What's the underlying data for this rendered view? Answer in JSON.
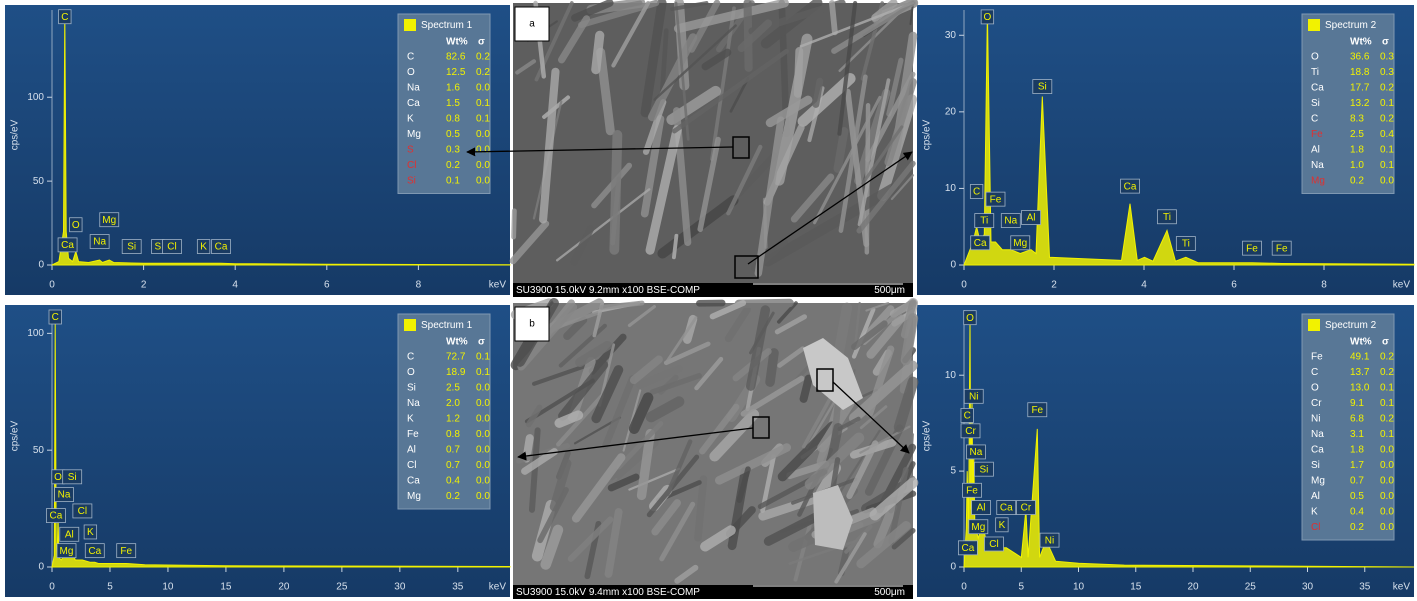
{
  "chart_data": [
    {
      "type": "line",
      "x_label": "keV",
      "y_label": "cps/eV",
      "color": "#f2f200",
      "xlim": [
        0,
        10
      ],
      "xticks": [
        0,
        2,
        4,
        6,
        8
      ],
      "ylim": [
        0,
        152
      ],
      "yticks": [
        0,
        50,
        100
      ],
      "x": [
        0,
        0.15,
        0.25,
        0.28,
        0.31,
        0.36,
        0.45,
        0.52,
        0.58,
        0.8,
        1.04,
        1.1,
        1.25,
        1.35,
        1.74,
        2.0,
        2.31,
        2.62,
        3.31,
        3.69,
        4.0,
        6,
        8,
        10
      ],
      "values": [
        0,
        2,
        20,
        150,
        20,
        4,
        2,
        8,
        2,
        1.5,
        3,
        1.5,
        3,
        1.5,
        1.2,
        1,
        1,
        1,
        1,
        1,
        0.8,
        0.5,
        0.3,
        0.2
      ],
      "annotations": [
        {
          "text": "C",
          "x": 0.28,
          "y": 148
        },
        {
          "text": "O",
          "x": 0.52,
          "y": 24
        },
        {
          "text": "Mg",
          "x": 1.25,
          "y": 27
        },
        {
          "text": "Na",
          "x": 1.04,
          "y": 14
        },
        {
          "text": "Ca",
          "x": 0.34,
          "y": 12
        },
        {
          "text": "Si",
          "x": 1.74,
          "y": 11
        },
        {
          "text": "S",
          "x": 2.31,
          "y": 11
        },
        {
          "text": "Cl",
          "x": 2.62,
          "y": 11
        },
        {
          "text": "K",
          "x": 3.31,
          "y": 11
        },
        {
          "text": "Ca",
          "x": 3.69,
          "y": 11
        }
      ],
      "legend_title": "Spectrum 1",
      "table_header": [
        "Wt%",
        "σ"
      ],
      "table": [
        {
          "element": "C",
          "wt": "82.6",
          "sigma": "0.2"
        },
        {
          "element": "O",
          "wt": "12.5",
          "sigma": "0.2"
        },
        {
          "element": "Na",
          "wt": "1.6",
          "sigma": "0.0"
        },
        {
          "element": "Ca",
          "wt": "1.5",
          "sigma": "0.1"
        },
        {
          "element": "K",
          "wt": "0.8",
          "sigma": "0.1"
        },
        {
          "element": "Mg",
          "wt": "0.5",
          "sigma": "0.0"
        },
        {
          "element": "S",
          "wt": "0.3",
          "sigma": "0.0",
          "color": "#e03030"
        },
        {
          "element": "Cl",
          "wt": "0.2",
          "sigma": "0.0",
          "color": "#e03030"
        },
        {
          "element": "Si",
          "wt": "0.1",
          "sigma": "0.0",
          "color": "#e03030"
        }
      ]
    },
    {
      "type": "line",
      "x_label": "keV",
      "y_label": "cps/eV",
      "color": "#f2f200",
      "xlim": [
        0,
        10
      ],
      "xticks": [
        0,
        2,
        4,
        6,
        8
      ],
      "ylim": [
        0,
        33.3
      ],
      "yticks": [
        0,
        10,
        20,
        30
      ],
      "x": [
        0,
        0.2,
        0.28,
        0.36,
        0.45,
        0.52,
        0.6,
        0.7,
        0.85,
        1.04,
        1.25,
        1.49,
        1.6,
        1.74,
        1.9,
        3.5,
        3.69,
        3.85,
        4.01,
        4.2,
        4.51,
        4.7,
        4.93,
        5.2,
        6.4,
        7.06,
        10
      ],
      "values": [
        0,
        3,
        5,
        3,
        4,
        33,
        3,
        3,
        2,
        2,
        1.5,
        2,
        1.5,
        22,
        1,
        0.6,
        8,
        0.6,
        1,
        0.5,
        4.5,
        0.5,
        1,
        0.3,
        0.3,
        0.2,
        0.1
      ],
      "annotations": [
        {
          "text": "O",
          "x": 0.52,
          "y": 32.4
        },
        {
          "text": "Si",
          "x": 1.74,
          "y": 23.3
        },
        {
          "text": "C",
          "x": 0.28,
          "y": 9.6
        },
        {
          "text": "Ti",
          "x": 0.45,
          "y": 5.8
        },
        {
          "text": "Fe",
          "x": 0.7,
          "y": 8.6
        },
        {
          "text": "Na",
          "x": 1.04,
          "y": 5.8
        },
        {
          "text": "Al",
          "x": 1.49,
          "y": 6.2
        },
        {
          "text": "Ca",
          "x": 0.36,
          "y": 2.9
        },
        {
          "text": "Mg",
          "x": 1.25,
          "y": 2.9
        },
        {
          "text": "Ca",
          "x": 3.69,
          "y": 10.3
        },
        {
          "text": "Ti",
          "x": 4.51,
          "y": 6.3
        },
        {
          "text": "Ti",
          "x": 4.93,
          "y": 2.8
        },
        {
          "text": "Fe",
          "x": 6.4,
          "y": 2.2
        },
        {
          "text": "Fe",
          "x": 7.06,
          "y": 2.2
        }
      ],
      "legend_title": "Spectrum 2",
      "table_header": [
        "Wt%",
        "σ"
      ],
      "table": [
        {
          "element": "O",
          "wt": "36.6",
          "sigma": "0.3"
        },
        {
          "element": "Ti",
          "wt": "18.8",
          "sigma": "0.3"
        },
        {
          "element": "Ca",
          "wt": "17.7",
          "sigma": "0.2"
        },
        {
          "element": "Si",
          "wt": "13.2",
          "sigma": "0.1"
        },
        {
          "element": "C",
          "wt": "8.3",
          "sigma": "0.2"
        },
        {
          "element": "Fe",
          "wt": "2.5",
          "sigma": "0.4",
          "color": "#e03030"
        },
        {
          "element": "Al",
          "wt": "1.8",
          "sigma": "0.1"
        },
        {
          "element": "Na",
          "wt": "1.0",
          "sigma": "0.1"
        },
        {
          "element": "Mg",
          "wt": "0.2",
          "sigma": "0.0",
          "color": "#e03030"
        }
      ]
    },
    {
      "type": "line",
      "x_label": "keV",
      "y_label": "cps/eV",
      "color": "#f2f200",
      "xlim": [
        0,
        39.5
      ],
      "xticks": [
        0,
        5,
        10,
        15,
        20,
        25,
        30,
        35
      ],
      "ylim": [
        0,
        110
      ],
      "yticks": [
        0,
        50,
        100
      ],
      "x": [
        0,
        0.2,
        0.28,
        0.36,
        0.45,
        0.52,
        0.6,
        0.8,
        1.04,
        1.25,
        1.49,
        1.74,
        2.0,
        2.62,
        3.31,
        3.69,
        4,
        6.4,
        8,
        15,
        39.5
      ],
      "values": [
        0,
        5,
        105,
        10,
        5,
        22,
        4,
        3,
        5,
        4,
        5,
        7,
        3,
        3,
        2,
        2,
        1.5,
        1.5,
        1,
        0.5,
        0.2
      ],
      "annotations": [
        {
          "text": "C",
          "x": 0.28,
          "y": 107
        },
        {
          "text": "O",
          "x": 0.52,
          "y": 38.6
        },
        {
          "text": "Si",
          "x": 1.74,
          "y": 38.6
        },
        {
          "text": "Na",
          "x": 1.04,
          "y": 31
        },
        {
          "text": "Ca",
          "x": 0.34,
          "y": 22
        },
        {
          "text": "Cl",
          "x": 2.62,
          "y": 24
        },
        {
          "text": "Al",
          "x": 1.49,
          "y": 14
        },
        {
          "text": "K",
          "x": 3.31,
          "y": 15
        },
        {
          "text": "Mg",
          "x": 1.25,
          "y": 7
        },
        {
          "text": "Ca",
          "x": 3.69,
          "y": 7
        },
        {
          "text": "Fe",
          "x": 6.4,
          "y": 7
        }
      ],
      "legend_title": "Spectrum 1",
      "table_header": [
        "Wt%",
        "σ"
      ],
      "table": [
        {
          "element": "C",
          "wt": "72.7",
          "sigma": "0.1"
        },
        {
          "element": "O",
          "wt": "18.9",
          "sigma": "0.1"
        },
        {
          "element": "Si",
          "wt": "2.5",
          "sigma": "0.0"
        },
        {
          "element": "Na",
          "wt": "2.0",
          "sigma": "0.0"
        },
        {
          "element": "K",
          "wt": "1.2",
          "sigma": "0.0"
        },
        {
          "element": "Fe",
          "wt": "0.8",
          "sigma": "0.0"
        },
        {
          "element": "Al",
          "wt": "0.7",
          "sigma": "0.0"
        },
        {
          "element": "Cl",
          "wt": "0.7",
          "sigma": "0.0"
        },
        {
          "element": "Ca",
          "wt": "0.4",
          "sigma": "0.0"
        },
        {
          "element": "Mg",
          "wt": "0.2",
          "sigma": "0.0"
        }
      ]
    },
    {
      "type": "line",
      "x_label": "keV",
      "y_label": "cps/eV",
      "color": "#f2f200",
      "xlim": [
        0,
        39.3
      ],
      "xticks": [
        0,
        5,
        10,
        15,
        20,
        25,
        30,
        35
      ],
      "ylim": [
        0,
        13.4
      ],
      "yticks": [
        0,
        5,
        10
      ],
      "x": [
        0,
        0.2,
        0.28,
        0.4,
        0.52,
        0.6,
        0.7,
        0.78,
        0.85,
        0.95,
        1.04,
        1.25,
        1.49,
        1.74,
        2.0,
        2.62,
        3.31,
        3.69,
        5.0,
        5.41,
        5.6,
        6.4,
        6.6,
        7.06,
        7.47,
        8,
        10,
        14,
        39.3
      ],
      "values": [
        0,
        2,
        5,
        2,
        13,
        3,
        9,
        3,
        6,
        2,
        2,
        1.5,
        2,
        2,
        1,
        1,
        1,
        1,
        0.5,
        3,
        0.5,
        7.2,
        0.5,
        1.2,
        1,
        0.3,
        0.2,
        0.1,
        0
      ],
      "annotations": [
        {
          "text": "O",
          "x": 0.52,
          "y": 13.0
        },
        {
          "text": "Ni",
          "x": 0.85,
          "y": 8.9
        },
        {
          "text": "C",
          "x": 0.28,
          "y": 7.9
        },
        {
          "text": "Cr",
          "x": 0.57,
          "y": 7.1
        },
        {
          "text": "Na",
          "x": 1.04,
          "y": 6.0
        },
        {
          "text": "Si",
          "x": 1.74,
          "y": 5.1
        },
        {
          "text": "Fe",
          "x": 0.7,
          "y": 4.0
        },
        {
          "text": "Al",
          "x": 1.49,
          "y": 3.1
        },
        {
          "text": "Mg",
          "x": 1.25,
          "y": 2.1
        },
        {
          "text": "Ca",
          "x": 0.34,
          "y": 1.0
        },
        {
          "text": "Cl",
          "x": 2.62,
          "y": 1.2
        },
        {
          "text": "K",
          "x": 3.31,
          "y": 2.2
        },
        {
          "text": "Ca",
          "x": 3.69,
          "y": 3.1
        },
        {
          "text": "Cr",
          "x": 5.41,
          "y": 3.1
        },
        {
          "text": "Fe",
          "x": 6.4,
          "y": 8.2
        },
        {
          "text": "Ni",
          "x": 7.47,
          "y": 1.4
        }
      ],
      "legend_title": "Spectrum 2",
      "table_header": [
        "Wt%",
        "σ"
      ],
      "table": [
        {
          "element": "Fe",
          "wt": "49.1",
          "sigma": "0.2"
        },
        {
          "element": "C",
          "wt": "13.7",
          "sigma": "0.2"
        },
        {
          "element": "O",
          "wt": "13.0",
          "sigma": "0.1"
        },
        {
          "element": "Cr",
          "wt": "9.1",
          "sigma": "0.1"
        },
        {
          "element": "Ni",
          "wt": "6.8",
          "sigma": "0.2"
        },
        {
          "element": "Na",
          "wt": "3.1",
          "sigma": "0.1"
        },
        {
          "element": "Ca",
          "wt": "1.8",
          "sigma": "0.0"
        },
        {
          "element": "Si",
          "wt": "1.7",
          "sigma": "0.0"
        },
        {
          "element": "Mg",
          "wt": "0.7",
          "sigma": "0.0"
        },
        {
          "element": "Al",
          "wt": "0.5",
          "sigma": "0.0"
        },
        {
          "element": "K",
          "wt": "0.4",
          "sigma": "0.0"
        },
        {
          "element": "Cl",
          "wt": "0.2",
          "sigma": "0.0",
          "color": "#e03030"
        }
      ]
    }
  ],
  "images": [
    {
      "label": "a",
      "caption": "SU3900 15.0kV 9.2mm x100 BSE-COMP",
      "scale": "500μm"
    },
    {
      "label": "b",
      "caption": "SU3900 15.0kV 9.4mm x100 BSE-COMP",
      "scale": "500μm"
    }
  ]
}
